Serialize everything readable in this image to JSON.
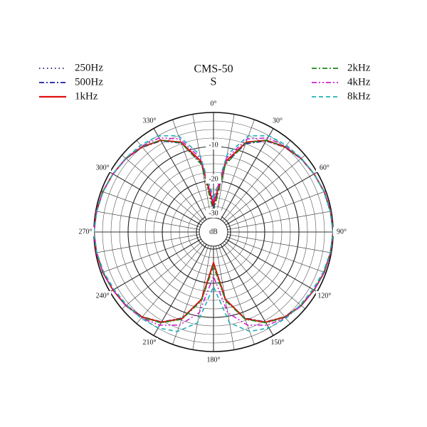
{
  "chart_data": {
    "type": "polar",
    "title": "CMS-50",
    "subtitle": "S",
    "r_label": "dB",
    "rlim": [
      -35,
      0
    ],
    "rticks": [
      -30,
      -20,
      -10
    ],
    "thetaticks": [
      {
        "value": 0,
        "label": "0°"
      },
      {
        "value": 30,
        "label": "30°"
      },
      {
        "value": 60,
        "label": "60°"
      },
      {
        "value": 90,
        "label": "90°"
      },
      {
        "value": 120,
        "label": "120°"
      },
      {
        "value": 150,
        "label": "150°"
      },
      {
        "value": 180,
        "label": "180°"
      },
      {
        "value": 210,
        "label": "210°"
      },
      {
        "value": 240,
        "label": "240°"
      },
      {
        "value": 270,
        "label": "270°"
      },
      {
        "value": 300,
        "label": "300°"
      },
      {
        "value": 330,
        "label": "330°"
      }
    ],
    "theta": [
      0,
      10,
      20,
      30,
      40,
      50,
      60,
      70,
      80,
      90,
      100,
      110,
      120,
      130,
      140,
      150,
      160,
      170,
      180,
      190,
      200,
      210,
      220,
      230,
      240,
      250,
      260,
      270,
      280,
      290,
      300,
      310,
      320,
      330,
      340,
      350
    ],
    "series": [
      {
        "name": "250Hz",
        "color": "#1a1a6e",
        "style": "dotted",
        "values": [
          -27,
          -14,
          -7,
          -4,
          -2.5,
          -1.5,
          -1,
          -0.5,
          -0.2,
          0,
          -0.2,
          -0.5,
          -1,
          -1.5,
          -2.5,
          -4.5,
          -8,
          -15,
          -26,
          -15,
          -8,
          -4.5,
          -2.5,
          -1.5,
          -1,
          -0.5,
          -0.2,
          0,
          -0.2,
          -0.5,
          -1,
          -1.5,
          -2.5,
          -4,
          -7,
          -14
        ]
      },
      {
        "name": "500Hz",
        "color": "#1a1aa8",
        "style": "dashdot",
        "values": [
          -28,
          -14.5,
          -7.5,
          -4.2,
          -2.6,
          -1.6,
          -1,
          -0.5,
          -0.2,
          0,
          -0.2,
          -0.5,
          -1,
          -1.6,
          -2.6,
          -4.6,
          -8.2,
          -15,
          -26,
          -15,
          -8.2,
          -4.6,
          -2.6,
          -1.6,
          -1,
          -0.5,
          -0.2,
          0,
          -0.2,
          -0.5,
          -1,
          -1.6,
          -2.6,
          -4.2,
          -7.3,
          -14.5
        ]
      },
      {
        "name": "1kHz",
        "color": "#e01010",
        "style": "solid",
        "values": [
          -27,
          -14,
          -7,
          -4,
          -2.5,
          -1.5,
          -1,
          -0.5,
          -0.2,
          0,
          -0.2,
          -0.5,
          -1,
          -1.5,
          -2.5,
          -4.5,
          -8,
          -15,
          -26,
          -15,
          -8,
          -4.5,
          -2.5,
          -1.5,
          -1,
          -0.5,
          -0.2,
          0,
          -0.2,
          -0.5,
          -1,
          -1.5,
          -2.5,
          -4,
          -7,
          -14
        ]
      },
      {
        "name": "2kHz",
        "color": "#1a8a1a",
        "style": "dashdot",
        "values": [
          -29,
          -15,
          -7.2,
          -4,
          -2.4,
          -1.5,
          -1,
          -0.6,
          -0.3,
          0,
          -0.3,
          -0.6,
          -1,
          -1.5,
          -2.4,
          -4.3,
          -7.8,
          -14.5,
          -25,
          -14.5,
          -7.8,
          -4.3,
          -2.4,
          -1.5,
          -1,
          -0.6,
          -0.3,
          0,
          -0.3,
          -0.6,
          -1,
          -1.5,
          -2.4,
          -4,
          -7.2,
          -15
        ]
      },
      {
        "name": "4kHz",
        "color": "#d020d0",
        "style": "dashdotdot",
        "values": [
          -26,
          -13,
          -6,
          -3.2,
          -2.2,
          -1.5,
          -1,
          -0.5,
          -0.2,
          0,
          -0.2,
          -0.5,
          -1,
          -1.4,
          -2.2,
          -3.5,
          -6,
          -11,
          -22,
          -11,
          -6,
          -3.5,
          -2.2,
          -1.4,
          -1,
          -0.5,
          -0.2,
          0,
          -0.2,
          -0.5,
          -1,
          -1.5,
          -2.2,
          -3.2,
          -6,
          -13
        ]
      },
      {
        "name": "8kHz",
        "color": "#20b0b8",
        "style": "dashed",
        "values": [
          -25,
          -12,
          -5,
          -2.5,
          -1.8,
          -1.4,
          -1,
          -0.6,
          -0.3,
          0,
          -0.3,
          -0.8,
          -1.4,
          -1.8,
          -2,
          -2.6,
          -4,
          -8,
          -19,
          -8,
          -4,
          -2.6,
          -2,
          -1.8,
          -1.4,
          -0.8,
          -0.3,
          0,
          -0.3,
          -0.6,
          -1,
          -1.4,
          -1.8,
          -2.5,
          -5,
          -12
        ]
      }
    ]
  }
}
